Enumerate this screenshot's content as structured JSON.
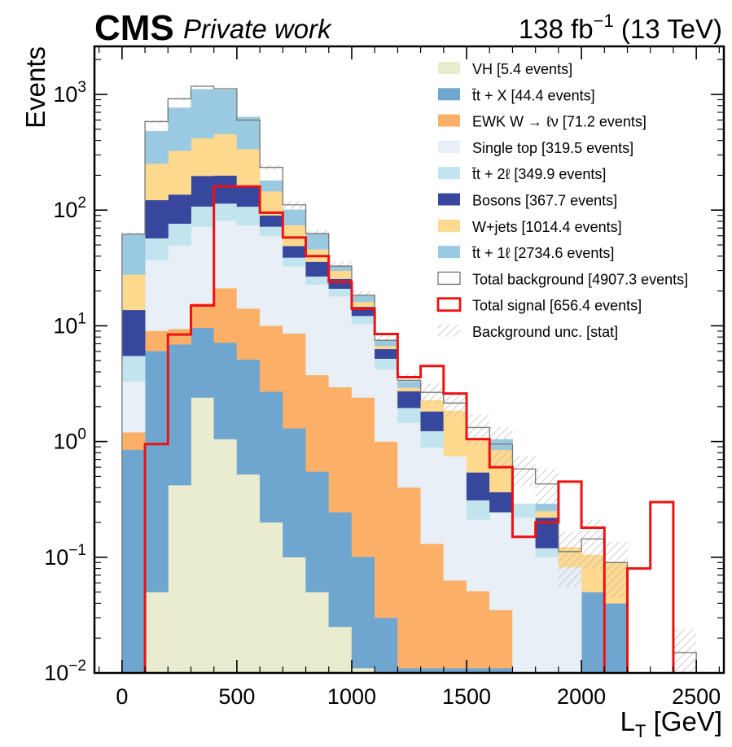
{
  "header": {
    "experiment": "CMS",
    "status": "Private work",
    "lumi_value": "138 fb",
    "lumi_exp": "−1",
    "energy": " (13 TeV)"
  },
  "chart_data": {
    "type": "bar",
    "stacked": true,
    "log_y": true,
    "xlabel_main": "L",
    "xlabel_sub": "T",
    "xlabel_unit": " [GeV]",
    "ylabel": "Events",
    "xlim": [
      -120,
      2620
    ],
    "ylim": [
      0.01,
      2600
    ],
    "x_ticks": [
      0,
      500,
      1000,
      1500,
      2000,
      2500
    ],
    "y_ticks": [
      {
        "base": "10",
        "exp": "−2",
        "value": 0.01
      },
      {
        "base": "10",
        "exp": "−1",
        "value": 0.1
      },
      {
        "base": "10",
        "exp": "0",
        "value": 1
      },
      {
        "base": "10",
        "exp": "1",
        "value": 10
      },
      {
        "base": "10",
        "exp": "2",
        "value": 100
      },
      {
        "base": "10",
        "exp": "3",
        "value": 1000
      }
    ],
    "bin_edges": [
      0,
      100,
      200,
      300,
      400,
      500,
      600,
      700,
      800,
      900,
      1000,
      1100,
      1200,
      1300,
      1400,
      1500,
      1600,
      1700,
      1800,
      1900,
      2000,
      2100,
      2200,
      2300,
      2400,
      2500
    ],
    "legend_position": "top-right",
    "series": [
      {
        "name": "VH [5.4 events]",
        "color": "#e9ecce",
        "values": [
          0,
          0.05,
          0.42,
          2.4,
          1.05,
          0.52,
          0.2,
          0.1,
          0.05,
          0.025,
          0.011,
          0,
          0,
          0,
          0,
          0,
          0,
          0,
          0,
          0,
          0,
          0,
          0,
          0,
          0
        ]
      },
      {
        "name": "t̄t + X [44.4 events]",
        "color": "#6ea6cf",
        "legend_tex": "ttX",
        "values": [
          0.85,
          6.0,
          6.5,
          7.2,
          6.1,
          4.6,
          2.5,
          1.2,
          0.5,
          0.22,
          0.09,
          0.03,
          0.011,
          0.011,
          0.011,
          0.011,
          0.011,
          0,
          0,
          0,
          0.05,
          0.04,
          0,
          0,
          0
        ]
      },
      {
        "name": "EWK W → ℓν [71.2 events]",
        "color": "#fcb067",
        "values": [
          0.35,
          3.0,
          2.5,
          6.0,
          14.0,
          9.0,
          7.3,
          7.3,
          3.2,
          2.7,
          2.3,
          0.97,
          0.39,
          0.12,
          0.052,
          0.04,
          0.024,
          0,
          0,
          0,
          0,
          0,
          0,
          0,
          0
        ]
      },
      {
        "name": "Single top [319.5 events]",
        "color": "#e8eff7",
        "values": [
          2.1,
          28,
          40,
          56,
          60,
          60,
          50,
          24,
          19,
          15,
          8,
          3.2,
          1.05,
          0.76,
          0.68,
          0.16,
          0.21,
          0.22,
          0.1,
          0.082,
          0,
          0,
          0,
          0,
          0
        ]
      },
      {
        "name": "t̄t + 2ℓ [349.9 events]",
        "color": "#c2e4ef",
        "legend_tex": "tt2l",
        "values": [
          2.2,
          20,
          27,
          36,
          33,
          33,
          12,
          6.3,
          4.0,
          3.0,
          1.8,
          1.0,
          0.5,
          0.34,
          0,
          0.1,
          0,
          0.07,
          0.02,
          0,
          0,
          0,
          0,
          0,
          0
        ]
      },
      {
        "name": "Bosons [367.7 events]",
        "color": "#37479e",
        "values": [
          8.2,
          65,
          60,
          90,
          85,
          50,
          18,
          10,
          9,
          4.5,
          2.4,
          1.1,
          0.77,
          0.59,
          0,
          0.23,
          0.12,
          0,
          0.1,
          0,
          0,
          0,
          0,
          0,
          0
        ]
      },
      {
        "name": "W+jets [1014.4 events]",
        "color": "#fed98e",
        "values": [
          14,
          130,
          190,
          220,
          255,
          180,
          55,
          25,
          10,
          4.5,
          1.5,
          0.4,
          0.2,
          0.45,
          1.1,
          0.52,
          0.48,
          0,
          0.03,
          0.04,
          0.055,
          0.05,
          0,
          0,
          0
        ]
      },
      {
        "name": "t̄t + 1ℓ [2734.6 events]",
        "color": "#9acae1",
        "legend_tex": "tt1l",
        "values": [
          35,
          230,
          440,
          690,
          640,
          300,
          35,
          27,
          17.5,
          3.1,
          2.2,
          0.85,
          0.4,
          0,
          0,
          0,
          0.2,
          0,
          0.04,
          0,
          0,
          0,
          0,
          0,
          0
        ]
      }
    ],
    "total_background": {
      "name": "Total background [4907.3 events]",
      "color": "#777777",
      "values": [
        62,
        582,
        916,
        1176,
        1120,
        600,
        234,
        111,
        62.7,
        32.8,
        18.4,
        7.5,
        3.38,
        2.66,
        2.15,
        1.32,
        0.95,
        0.58,
        0.43,
        0.112,
        0.144,
        0.09,
        0,
        0,
        0.015
      ]
    },
    "total_signal": {
      "name": "Total signal [656.4 events]",
      "color": "#ee1111",
      "values": [
        0,
        0.95,
        8.4,
        15,
        160,
        160,
        95,
        58,
        40,
        24,
        14,
        8.5,
        3.6,
        4.5,
        2.6,
        1.05,
        0.6,
        0.15,
        0.2,
        0.45,
        0.18,
        0,
        0.08,
        0.3,
        0
      ]
    },
    "uncertainty": {
      "name": "Background unc. [stat]",
      "color": "#bbbbbb",
      "rel_err": [
        0.05,
        0.03,
        0.025,
        0.02,
        0.02,
        0.025,
        0.05,
        0.08,
        0.08,
        0.1,
        0.1,
        0.12,
        0.15,
        0.2,
        0.25,
        0.3,
        0.4,
        0.3,
        0.35,
        0.5,
        0.45,
        0.5,
        0,
        0,
        0.6
      ]
    }
  }
}
